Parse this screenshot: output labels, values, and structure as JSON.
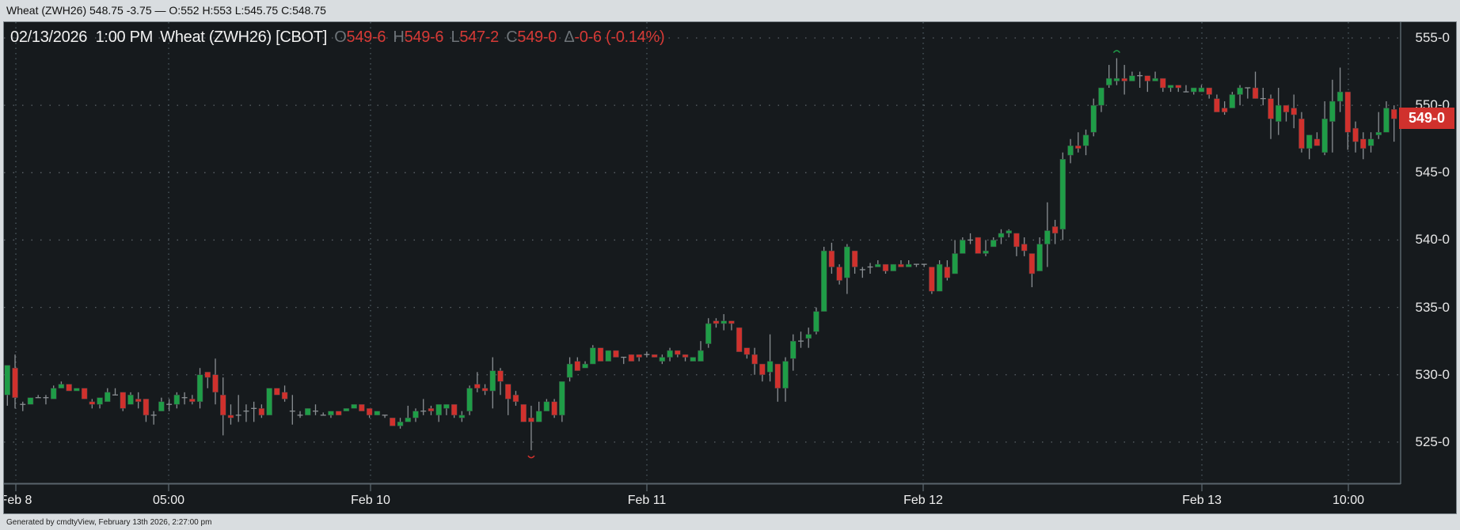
{
  "window_title": "Wheat (ZWH26) 548.75 -3.75 — O:552 H:553 L:545.75 C:548.75",
  "header": {
    "datetime": "02/13/2026  1:00 PM",
    "instrument": "Wheat (ZWH26) [CBOT]",
    "open_label": "O",
    "open": "549-6",
    "high_label": "H",
    "high": "549-6",
    "low_label": "L",
    "low": "547-2",
    "close_label": "C",
    "close": "549-0",
    "change_label": "Δ",
    "change": "-0-6 (-0.14%)"
  },
  "last_price_label": "549-0",
  "footer": "Generated by cmdtyView, February 13th 2026, 2:27:00 pm",
  "colors": {
    "up": "#1f9d47",
    "down": "#d0312d",
    "wick": "#8a8f93",
    "background": "#161a1d"
  },
  "chart_data": {
    "type": "candlestick",
    "title": "Wheat (ZWH26) [CBOT]",
    "ylim": [
      521.5,
      556.5
    ],
    "yticks": [
      525,
      530,
      535,
      540,
      545,
      550,
      555
    ],
    "ytick_labels": [
      "525-0",
      "530-0",
      "535-0",
      "540-0",
      "545-0",
      "550-0",
      "555-0"
    ],
    "xtick_labels": [
      {
        "label": "Feb 8",
        "index": 1
      },
      {
        "label": "05:00",
        "index": 21
      },
      {
        "label": "Feb 10",
        "index": 47
      },
      {
        "label": "Feb 11",
        "index": 83
      },
      {
        "label": "Feb 12",
        "index": 119
      },
      {
        "label": "Feb 13",
        "index": 155
      },
      {
        "label": "10:00",
        "index": 174
      }
    ],
    "grid": true,
    "high_marker_index": 144,
    "low_marker_index": 68,
    "candles_ohlc": [
      [
        528.5,
        530.7,
        527.7,
        530.7
      ],
      [
        530.5,
        531.5,
        527.5,
        528.3
      ],
      [
        527.8,
        528.0,
        527.3,
        527.8
      ],
      [
        527.8,
        528.3,
        527.8,
        528.3
      ],
      [
        528.3,
        528.5,
        528.3,
        528.3
      ],
      [
        528.3,
        528.5,
        527.8,
        528.3
      ],
      [
        528.2,
        529.2,
        528.2,
        529.0
      ],
      [
        529.0,
        529.5,
        529.0,
        529.3
      ],
      [
        529.3,
        529.3,
        528.8,
        528.8
      ],
      [
        528.8,
        529.0,
        528.8,
        529.0
      ],
      [
        529.0,
        529.0,
        528.2,
        528.2
      ],
      [
        528.0,
        528.2,
        527.5,
        527.8
      ],
      [
        527.8,
        528.3,
        527.5,
        528.3
      ],
      [
        528.0,
        529.0,
        528.0,
        528.7
      ],
      [
        528.5,
        529.0,
        528.5,
        528.5
      ],
      [
        528.7,
        528.7,
        527.3,
        527.5
      ],
      [
        527.8,
        528.7,
        527.8,
        528.5
      ],
      [
        528.2,
        528.7,
        527.5,
        528.0
      ],
      [
        528.2,
        528.2,
        526.5,
        527.0
      ],
      [
        527.0,
        527.3,
        526.3,
        527.0
      ],
      [
        527.3,
        528.3,
        527.3,
        528.0
      ],
      [
        527.8,
        528.2,
        527.3,
        527.8
      ],
      [
        527.8,
        528.7,
        527.5,
        528.5
      ],
      [
        528.3,
        528.7,
        527.8,
        528.3
      ],
      [
        528.2,
        528.5,
        527.8,
        528.0
      ],
      [
        528.0,
        530.5,
        527.5,
        530.0
      ],
      [
        530.2,
        530.2,
        529.0,
        529.8
      ],
      [
        530.0,
        531.2,
        527.8,
        528.7
      ],
      [
        528.5,
        529.8,
        525.5,
        527.0
      ],
      [
        527.0,
        527.8,
        526.3,
        526.8
      ],
      [
        527.0,
        528.5,
        526.5,
        527.0
      ],
      [
        527.3,
        527.8,
        526.5,
        527.3
      ],
      [
        527.5,
        528.0,
        526.5,
        527.5
      ],
      [
        527.5,
        527.8,
        526.8,
        527.0
      ],
      [
        527.0,
        529.0,
        527.0,
        529.0
      ],
      [
        529.0,
        529.0,
        528.5,
        528.5
      ],
      [
        528.7,
        529.2,
        528.0,
        528.2
      ],
      [
        527.3,
        528.5,
        526.3,
        527.3
      ],
      [
        527.0,
        527.3,
        526.8,
        527.0
      ],
      [
        527.0,
        527.5,
        527.0,
        527.5
      ],
      [
        527.3,
        527.8,
        527.0,
        527.3
      ],
      [
        527.0,
        527.2,
        527.0,
        527.0
      ],
      [
        527.0,
        527.3,
        526.8,
        527.3
      ],
      [
        527.3,
        527.3,
        527.0,
        527.0
      ],
      [
        527.3,
        527.5,
        527.3,
        527.5
      ],
      [
        527.5,
        527.8,
        527.5,
        527.8
      ],
      [
        527.8,
        527.8,
        527.3,
        527.3
      ],
      [
        527.5,
        527.5,
        526.8,
        527.0
      ],
      [
        527.0,
        527.3,
        527.0,
        527.3
      ],
      [
        527.0,
        527.0,
        526.8,
        527.0
      ],
      [
        526.8,
        526.8,
        526.2,
        526.2
      ],
      [
        526.2,
        526.8,
        526.0,
        526.5
      ],
      [
        526.5,
        527.7,
        526.5,
        526.8
      ],
      [
        526.8,
        527.5,
        526.5,
        527.3
      ],
      [
        527.3,
        528.2,
        527.0,
        527.3
      ],
      [
        527.5,
        527.7,
        527.0,
        527.3
      ],
      [
        527.0,
        527.8,
        526.5,
        527.8
      ],
      [
        527.5,
        527.8,
        527.0,
        527.8
      ],
      [
        527.8,
        527.8,
        526.8,
        527.0
      ],
      [
        526.8,
        527.3,
        526.5,
        527.0
      ],
      [
        527.3,
        529.2,
        527.0,
        529.0
      ],
      [
        529.3,
        530.2,
        528.7,
        529.0
      ],
      [
        529.0,
        529.3,
        528.5,
        528.8
      ],
      [
        528.8,
        531.3,
        527.5,
        530.3
      ],
      [
        530.3,
        530.5,
        528.5,
        529.5
      ],
      [
        529.3,
        529.3,
        527.0,
        528.2
      ],
      [
        528.5,
        528.8,
        527.7,
        528.0
      ],
      [
        527.8,
        527.8,
        526.5,
        526.5
      ],
      [
        526.8,
        527.7,
        524.4,
        526.5
      ],
      [
        526.5,
        528.0,
        526.5,
        527.3
      ],
      [
        527.3,
        528.2,
        527.3,
        528.0
      ],
      [
        528.0,
        528.2,
        526.8,
        527.0
      ],
      [
        527.0,
        529.5,
        526.5,
        529.5
      ],
      [
        529.8,
        531.3,
        529.5,
        530.8
      ],
      [
        531.0,
        531.3,
        530.3,
        530.3
      ],
      [
        530.5,
        531.0,
        530.5,
        530.8
      ],
      [
        530.8,
        532.2,
        530.8,
        532.0
      ],
      [
        532.0,
        532.0,
        531.0,
        531.0
      ],
      [
        531.0,
        531.8,
        531.0,
        531.8
      ],
      [
        531.8,
        531.8,
        531.3,
        531.3
      ],
      [
        531.3,
        531.3,
        530.8,
        531.3
      ],
      [
        531.5,
        531.5,
        531.0,
        531.0
      ],
      [
        531.5,
        531.5,
        531.0,
        531.3
      ],
      [
        531.5,
        531.7,
        531.3,
        531.5
      ],
      [
        531.5,
        531.5,
        531.3,
        531.3
      ],
      [
        531.0,
        531.5,
        530.8,
        531.3
      ],
      [
        531.3,
        532.0,
        531.0,
        531.8
      ],
      [
        531.8,
        531.8,
        531.3,
        531.5
      ],
      [
        531.5,
        531.5,
        531.0,
        531.3
      ],
      [
        531.0,
        531.3,
        531.0,
        531.3
      ],
      [
        531.0,
        532.5,
        531.0,
        531.8
      ],
      [
        532.3,
        534.2,
        532.0,
        533.8
      ],
      [
        534.0,
        534.2,
        533.5,
        533.8
      ],
      [
        533.8,
        534.5,
        533.3,
        534.0
      ],
      [
        534.0,
        534.0,
        533.3,
        533.8
      ],
      [
        533.5,
        533.5,
        531.7,
        531.7
      ],
      [
        532.0,
        532.0,
        531.2,
        531.5
      ],
      [
        531.5,
        532.0,
        530.0,
        530.8
      ],
      [
        530.8,
        530.8,
        529.5,
        530.0
      ],
      [
        530.2,
        533.0,
        529.5,
        531.0
      ],
      [
        530.8,
        530.8,
        528.0,
        529.0
      ],
      [
        529.0,
        531.3,
        528.0,
        531.0
      ],
      [
        531.2,
        533.0,
        530.3,
        532.5
      ],
      [
        532.5,
        533.2,
        532.0,
        532.5
      ],
      [
        532.7,
        533.5,
        532.0,
        533.0
      ],
      [
        533.2,
        535.0,
        533.0,
        534.7
      ],
      [
        534.7,
        539.5,
        534.7,
        539.2
      ],
      [
        539.2,
        539.8,
        537.5,
        538.0
      ],
      [
        538.0,
        538.2,
        536.7,
        537.0
      ],
      [
        537.2,
        539.7,
        536.0,
        539.5
      ],
      [
        539.2,
        539.2,
        537.5,
        538.0
      ],
      [
        537.8,
        538.0,
        537.2,
        537.8
      ],
      [
        538.0,
        538.3,
        537.5,
        538.0
      ],
      [
        538.0,
        538.5,
        538.0,
        538.2
      ],
      [
        538.2,
        538.2,
        537.5,
        537.7
      ],
      [
        537.7,
        538.2,
        537.7,
        538.2
      ],
      [
        538.2,
        538.5,
        538.0,
        538.0
      ],
      [
        538.0,
        538.5,
        538.0,
        538.2
      ],
      [
        538.2,
        538.2,
        538.0,
        538.2
      ],
      [
        538.2,
        538.2,
        538.0,
        538.2
      ],
      [
        538.0,
        538.0,
        536.0,
        536.2
      ],
      [
        536.2,
        538.5,
        536.2,
        538.2
      ],
      [
        538.0,
        538.5,
        537.0,
        537.2
      ],
      [
        537.5,
        540.0,
        537.5,
        539.0
      ],
      [
        539.0,
        540.2,
        539.0,
        540.0
      ],
      [
        540.0,
        540.5,
        539.7,
        540.0
      ],
      [
        540.2,
        540.2,
        539.0,
        539.0
      ],
      [
        539.0,
        540.0,
        538.8,
        539.2
      ],
      [
        539.5,
        540.2,
        539.5,
        540.0
      ],
      [
        540.2,
        540.8,
        539.7,
        540.5
      ],
      [
        540.5,
        540.8,
        540.2,
        540.7
      ],
      [
        540.5,
        540.5,
        538.8,
        539.5
      ],
      [
        539.7,
        540.2,
        538.8,
        539.2
      ],
      [
        539.0,
        539.0,
        536.5,
        537.5
      ],
      [
        537.7,
        540.2,
        537.7,
        539.7
      ],
      [
        539.7,
        542.8,
        538.0,
        540.7
      ],
      [
        541.0,
        541.5,
        539.7,
        540.5
      ],
      [
        540.8,
        546.5,
        540.0,
        546.0
      ],
      [
        546.3,
        547.5,
        545.7,
        547.0
      ],
      [
        547.0,
        548.0,
        546.5,
        546.8
      ],
      [
        547.0,
        548.2,
        546.3,
        547.8
      ],
      [
        548.0,
        550.5,
        547.7,
        550.0
      ],
      [
        550.0,
        551.3,
        549.5,
        551.3
      ],
      [
        551.5,
        553.0,
        551.3,
        552.0
      ],
      [
        551.8,
        553.5,
        551.5,
        552.0
      ],
      [
        552.0,
        553.0,
        550.8,
        551.8
      ],
      [
        551.8,
        552.5,
        551.8,
        552.2
      ],
      [
        552.2,
        552.5,
        551.3,
        552.2
      ],
      [
        552.2,
        552.2,
        551.0,
        551.8
      ],
      [
        551.8,
        552.5,
        551.8,
        552.0
      ],
      [
        552.0,
        552.0,
        551.0,
        551.3
      ],
      [
        551.3,
        551.5,
        551.0,
        551.5
      ],
      [
        551.5,
        551.5,
        551.0,
        551.3
      ],
      [
        551.0,
        551.5,
        551.0,
        551.0
      ],
      [
        551.0,
        551.3,
        550.8,
        551.3
      ],
      [
        551.0,
        551.5,
        551.0,
        551.3
      ],
      [
        551.3,
        551.3,
        550.5,
        550.8
      ],
      [
        550.5,
        550.8,
        549.5,
        549.5
      ],
      [
        549.8,
        550.3,
        549.3,
        549.5
      ],
      [
        549.8,
        551.0,
        549.8,
        550.8
      ],
      [
        550.8,
        551.5,
        550.0,
        551.3
      ],
      [
        551.3,
        551.3,
        550.5,
        551.3
      ],
      [
        551.3,
        552.5,
        550.5,
        550.5
      ],
      [
        550.5,
        551.3,
        550.0,
        550.5
      ],
      [
        550.5,
        550.8,
        547.5,
        549.0
      ],
      [
        548.8,
        551.3,
        547.8,
        550.0
      ],
      [
        550.0,
        550.0,
        548.8,
        549.5
      ],
      [
        549.8,
        550.8,
        548.3,
        549.3
      ],
      [
        549.0,
        549.5,
        546.5,
        546.8
      ],
      [
        546.8,
        547.8,
        546.0,
        547.8
      ],
      [
        547.5,
        548.0,
        547.0,
        547.0
      ],
      [
        546.5,
        550.3,
        546.3,
        549.0
      ],
      [
        548.8,
        551.9,
        546.5,
        550.3
      ],
      [
        550.3,
        552.8,
        549.5,
        551.0
      ],
      [
        551.0,
        551.0,
        546.7,
        548.0
      ],
      [
        548.3,
        548.8,
        546.5,
        547.3
      ],
      [
        547.5,
        548.0,
        546.0,
        546.8
      ],
      [
        547.0,
        548.0,
        546.5,
        547.5
      ],
      [
        547.8,
        549.5,
        547.5,
        548.0
      ],
      [
        548.0,
        550.3,
        548.0,
        549.8
      ],
      [
        549.7,
        550.0,
        547.3,
        549.0
      ]
    ]
  }
}
